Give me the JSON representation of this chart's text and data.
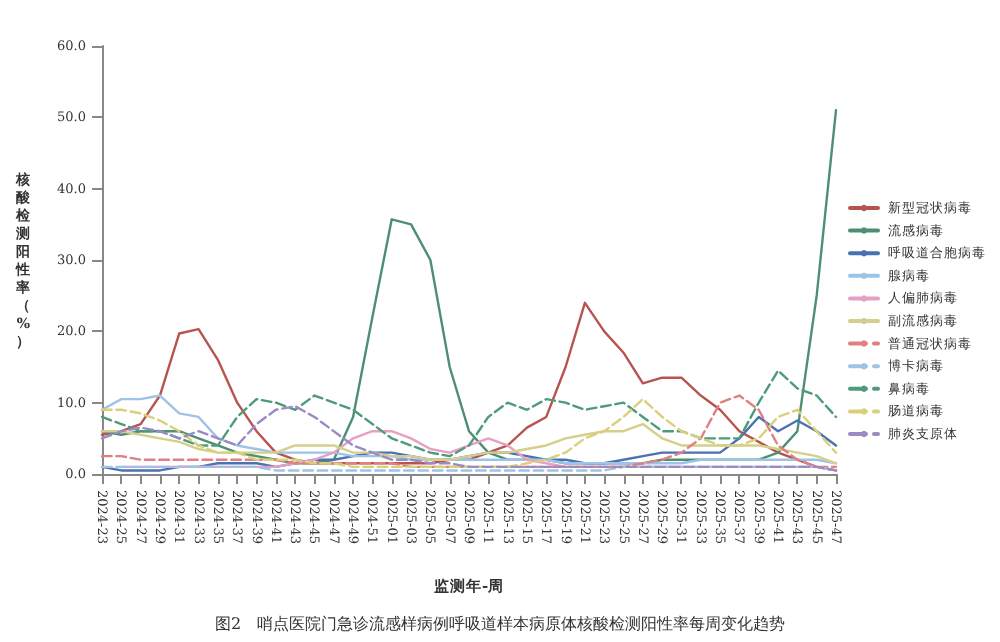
{
  "chart_data": {
    "type": "line",
    "xlabel": "监测年-周",
    "ylabel": "核酸检测阳性率（%）",
    "annotations": [
      "图2　哨点医院门急诊流感样病例呼吸道样本病原体核酸检测阳性率每周变化趋势"
    ],
    "categories": [
      "2024-23",
      "2024-25",
      "2024-27",
      "2024-29",
      "2024-31",
      "2024-33",
      "2024-35",
      "2024-37",
      "2024-39",
      "2024-41",
      "2024-43",
      "2024-45",
      "2024-47",
      "2024-49",
      "2024-51",
      "2025-01",
      "2025-03",
      "2025-05",
      "2025-07",
      "2025-09",
      "2025-11",
      "2025-13",
      "2025-15",
      "2025-17",
      "2025-19",
      "2025-21",
      "2025-23",
      "2025-25",
      "2025-27",
      "2025-29",
      "2025-31",
      "2025-33",
      "2025-35",
      "2025-37",
      "2025-39",
      "2025-41",
      "2025-43",
      "2025-45",
      "2025-47"
    ],
    "ylim": [
      0,
      60
    ],
    "yticks": [
      {
        "value": 0,
        "label": "0.0"
      },
      {
        "value": 10,
        "label": "10.0"
      },
      {
        "value": 20,
        "label": "20.0"
      },
      {
        "value": 30,
        "label": "30.0"
      },
      {
        "value": 40,
        "label": "40.0"
      },
      {
        "value": 50,
        "label": "50.0"
      },
      {
        "value": 60,
        "label": "60.0"
      }
    ],
    "grid": false,
    "legend": "right",
    "marker": "none",
    "series": [
      {
        "name": "新型冠状病毒",
        "color": "#b85450",
        "line_style": "solid",
        "values": [
          5.5,
          6,
          7,
          11,
          19.7,
          20.3,
          16,
          10,
          6,
          3,
          2,
          1.5,
          1.5,
          1.5,
          1.5,
          1.5,
          1.5,
          1.5,
          2,
          2,
          3,
          4,
          6.5,
          8,
          15,
          24,
          20,
          17,
          12.7,
          13.5,
          13.5,
          11,
          9,
          6,
          4.5,
          3,
          2,
          1,
          0.5
        ]
      },
      {
        "name": "流感病毒",
        "color": "#4e8f72",
        "line_style": "solid",
        "values": [
          6,
          5.5,
          6,
          6,
          6,
          5,
          4,
          3,
          2.5,
          2,
          1.5,
          1.5,
          2,
          8,
          22,
          35.7,
          35,
          30,
          15,
          6,
          3,
          2,
          2,
          2,
          1.5,
          1.5,
          1.5,
          1.5,
          1.5,
          2,
          2,
          2,
          2,
          2,
          2,
          3,
          6,
          25,
          51
        ]
      },
      {
        "name": "呼吸道合胞病毒",
        "color": "#4a72b0",
        "line_style": "solid",
        "values": [
          1,
          0.5,
          0.5,
          0.5,
          1,
          1,
          1.5,
          1.5,
          1.5,
          1,
          1.5,
          2,
          2,
          2.5,
          3,
          3,
          2.5,
          2,
          2,
          2.5,
          3,
          3,
          2.5,
          2,
          2,
          1.5,
          1.5,
          2,
          2.5,
          3,
          3,
          3,
          3,
          5,
          8,
          6,
          7.5,
          6,
          4
        ]
      },
      {
        "name": "腺病毒",
        "color": "#9dc3e6",
        "line_style": "solid",
        "values": [
          9,
          10.5,
          10.5,
          11,
          8.5,
          8,
          5,
          4,
          3.5,
          3,
          3,
          3,
          3,
          2.5,
          2.5,
          2.5,
          2,
          2,
          2,
          2,
          2,
          2,
          2,
          2,
          1.5,
          1.5,
          1.5,
          1.5,
          1.5,
          1.5,
          1.5,
          2,
          2,
          2,
          2,
          2,
          2,
          2,
          1.5
        ]
      },
      {
        "name": "人偏肺病毒",
        "color": "#e6a0c4",
        "line_style": "solid",
        "values": [
          null,
          1,
          1,
          1,
          1,
          1,
          1,
          1,
          1,
          1,
          1.5,
          2,
          3,
          5,
          6,
          6,
          5,
          3.5,
          3,
          4,
          5,
          4,
          2,
          1.5,
          1,
          1,
          1,
          1,
          1,
          1,
          1,
          1,
          1,
          1,
          1,
          1,
          1,
          1,
          0.5
        ]
      },
      {
        "name": "副流感病毒",
        "color": "#d4cf8a",
        "line_style": "solid",
        "values": [
          6,
          6,
          5.5,
          5,
          4.5,
          3.5,
          3,
          3,
          3,
          3,
          4,
          4,
          4,
          3,
          3,
          2.5,
          2.5,
          2,
          2,
          2.5,
          3,
          3,
          3.5,
          4,
          5,
          5.5,
          6,
          6,
          7,
          5,
          4,
          4,
          4,
          4,
          4,
          3.5,
          3,
          2.5,
          1.5
        ]
      },
      {
        "name": "普通冠状病毒",
        "color": "#e08080",
        "line_style": "dashed",
        "values": [
          2.5,
          2.5,
          2,
          2,
          2,
          2,
          2,
          2,
          2,
          2,
          1.5,
          1.5,
          1.5,
          1.5,
          1.5,
          1.5,
          1,
          1,
          1,
          1,
          1,
          1,
          1,
          1,
          1,
          1,
          1,
          1,
          1.5,
          2,
          3,
          5,
          10,
          11,
          9,
          4,
          2,
          1,
          1
        ]
      },
      {
        "name": "博卡病毒",
        "color": "#9dc3e6",
        "line_style": "dashed",
        "values": [
          1,
          1,
          1,
          1,
          1,
          1,
          1,
          1,
          1,
          0.5,
          0.5,
          0.5,
          0.5,
          0.5,
          0.5,
          0.5,
          0.5,
          0.5,
          0.5,
          0.5,
          0.5,
          0.5,
          0.5,
          0.5,
          0.5,
          0.5,
          0.5,
          1,
          1,
          1,
          1,
          1,
          1,
          1,
          1,
          1,
          1,
          1,
          0.5
        ]
      },
      {
        "name": "鼻病毒",
        "color": "#4e9a7a",
        "line_style": "dashed",
        "values": [
          8,
          7,
          6,
          6,
          5,
          4,
          4,
          8,
          10.5,
          10,
          9,
          11,
          10,
          9,
          7,
          5,
          4,
          3,
          2.5,
          4,
          8,
          10,
          9,
          10.5,
          10,
          9,
          9.5,
          10,
          8,
          6,
          6,
          5,
          5,
          5,
          10,
          14.5,
          12,
          11,
          8
        ]
      },
      {
        "name": "肠道病毒",
        "color": "#d9d07a",
        "line_style": "dashed",
        "values": [
          9,
          9,
          8.5,
          7.5,
          6,
          4,
          3,
          3,
          2,
          2,
          2,
          1.5,
          1.5,
          1,
          1,
          1,
          1,
          1,
          1,
          1,
          1,
          1,
          1.5,
          2,
          3,
          5,
          6,
          8,
          10.5,
          8,
          6,
          5,
          4,
          4,
          5,
          8,
          9,
          6,
          3
        ]
      },
      {
        "name": "肺炎支原体",
        "color": "#9c8ac4",
        "line_style": "dashed",
        "values": [
          5,
          6,
          6.5,
          6,
          5,
          6,
          5,
          4,
          7,
          9,
          9.5,
          8,
          6,
          4,
          3,
          2,
          2,
          1.5,
          1.5,
          1,
          1,
          1,
          1,
          1,
          1,
          1,
          1,
          1,
          1,
          1,
          1,
          1,
          1,
          1,
          1,
          1,
          1,
          1,
          0.5
        ]
      }
    ]
  }
}
